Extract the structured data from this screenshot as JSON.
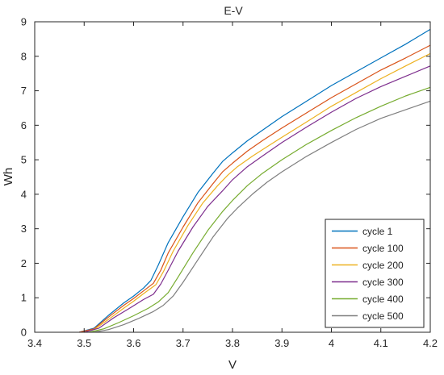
{
  "chart_data": {
    "type": "line",
    "title": "E-V",
    "xlabel": "V",
    "ylabel": "Wh",
    "xlim": [
      3.4,
      4.2
    ],
    "ylim": [
      0,
      9
    ],
    "xticks": [
      "3.4",
      "3.5",
      "3.6",
      "3.7",
      "3.8",
      "3.9",
      "4",
      "4.1",
      "4.2"
    ],
    "yticks": [
      "0",
      "1",
      "2",
      "3",
      "4",
      "5",
      "6",
      "7",
      "8",
      "9"
    ],
    "grid": false,
    "legend_position": "bottom-right",
    "series": [
      {
        "name": "cycle 1",
        "color": "#0072bd",
        "x": [
          3.49,
          3.52,
          3.55,
          3.58,
          3.6,
          3.62,
          3.635,
          3.65,
          3.67,
          3.7,
          3.73,
          3.76,
          3.78,
          3.8,
          3.83,
          3.86,
          3.9,
          3.95,
          4.0,
          4.05,
          4.1,
          4.15,
          4.2
        ],
        "y": [
          0,
          0.12,
          0.5,
          0.85,
          1.05,
          1.28,
          1.5,
          1.95,
          2.6,
          3.35,
          4.05,
          4.6,
          4.95,
          5.2,
          5.55,
          5.85,
          6.25,
          6.7,
          7.15,
          7.55,
          7.95,
          8.35,
          8.78
        ]
      },
      {
        "name": "cycle 100",
        "color": "#d95319",
        "x": [
          3.49,
          3.52,
          3.55,
          3.58,
          3.6,
          3.62,
          3.64,
          3.655,
          3.67,
          3.7,
          3.73,
          3.76,
          3.78,
          3.8,
          3.83,
          3.86,
          3.9,
          3.95,
          4.0,
          4.05,
          4.1,
          4.15,
          4.2
        ],
        "y": [
          0,
          0.1,
          0.45,
          0.78,
          0.98,
          1.2,
          1.42,
          1.8,
          2.3,
          3.05,
          3.75,
          4.3,
          4.65,
          4.9,
          5.25,
          5.55,
          5.92,
          6.36,
          6.8,
          7.2,
          7.6,
          7.95,
          8.32
        ]
      },
      {
        "name": "cycle 200",
        "color": "#edb120",
        "x": [
          3.5,
          3.52,
          3.55,
          3.58,
          3.6,
          3.62,
          3.645,
          3.66,
          3.68,
          3.71,
          3.74,
          3.77,
          3.79,
          3.81,
          3.84,
          3.87,
          3.9,
          3.95,
          4.0,
          4.05,
          4.1,
          4.15,
          4.2
        ],
        "y": [
          0,
          0.08,
          0.38,
          0.7,
          0.9,
          1.12,
          1.38,
          1.75,
          2.35,
          3.1,
          3.75,
          4.25,
          4.55,
          4.8,
          5.1,
          5.38,
          5.65,
          6.1,
          6.55,
          6.95,
          7.35,
          7.72,
          8.08
        ]
      },
      {
        "name": "cycle 300",
        "color": "#7e2f8e",
        "x": [
          3.5,
          3.53,
          3.56,
          3.59,
          3.62,
          3.64,
          3.655,
          3.67,
          3.69,
          3.72,
          3.75,
          3.78,
          3.8,
          3.83,
          3.86,
          3.9,
          3.95,
          4.0,
          4.05,
          4.1,
          4.15,
          4.2
        ],
        "y": [
          0,
          0.12,
          0.42,
          0.68,
          0.95,
          1.1,
          1.4,
          1.8,
          2.35,
          3.05,
          3.65,
          4.1,
          4.42,
          4.8,
          5.1,
          5.5,
          5.95,
          6.38,
          6.78,
          7.12,
          7.42,
          7.72
        ]
      },
      {
        "name": "cycle 400",
        "color": "#77ac30",
        "x": [
          3.51,
          3.54,
          3.57,
          3.6,
          3.63,
          3.65,
          3.67,
          3.69,
          3.72,
          3.75,
          3.78,
          3.8,
          3.83,
          3.86,
          3.9,
          3.95,
          4.0,
          4.05,
          4.1,
          4.15,
          4.2
        ],
        "y": [
          0,
          0.1,
          0.28,
          0.48,
          0.7,
          0.88,
          1.15,
          1.6,
          2.3,
          2.95,
          3.5,
          3.82,
          4.25,
          4.6,
          5.0,
          5.45,
          5.85,
          6.22,
          6.55,
          6.85,
          7.1
        ]
      },
      {
        "name": "cycle 500",
        "color": "#7f7f7f",
        "x": [
          3.52,
          3.55,
          3.58,
          3.61,
          3.64,
          3.66,
          3.68,
          3.7,
          3.73,
          3.76,
          3.79,
          3.81,
          3.84,
          3.87,
          3.9,
          3.95,
          4.0,
          4.05,
          4.1,
          4.15,
          4.2
        ],
        "y": [
          0,
          0.08,
          0.22,
          0.4,
          0.6,
          0.78,
          1.05,
          1.45,
          2.1,
          2.75,
          3.3,
          3.6,
          4.0,
          4.35,
          4.65,
          5.1,
          5.5,
          5.88,
          6.2,
          6.45,
          6.7
        ]
      }
    ]
  }
}
